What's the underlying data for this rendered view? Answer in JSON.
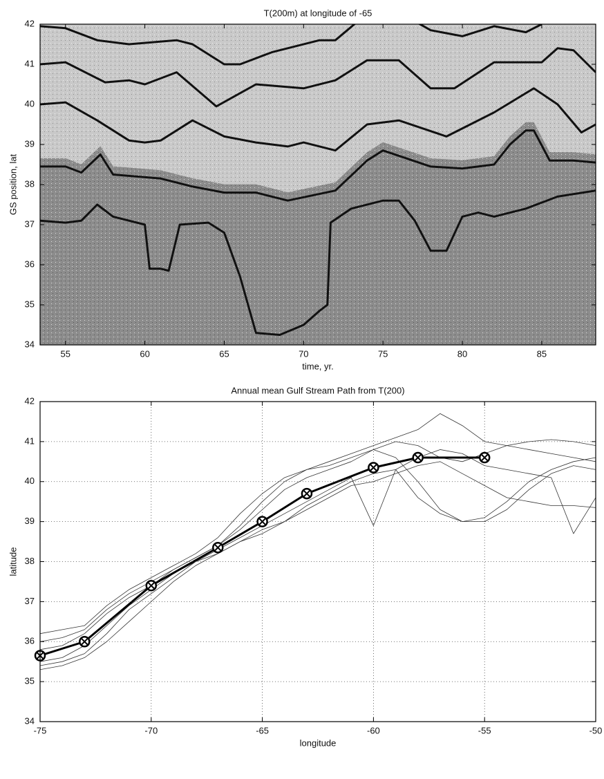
{
  "chart_data": [
    {
      "type": "line",
      "title": "T(200m) at longitude of -65",
      "x_label": "time, yr.",
      "y_label": "GS position, lat",
      "xlim": [
        53.4,
        88.4
      ],
      "ylim": [
        34,
        42
      ],
      "xticks": [
        55,
        60,
        65,
        70,
        75,
        80,
        85
      ],
      "yticks": [
        34,
        35,
        36,
        37,
        38,
        39,
        40,
        41,
        42
      ],
      "grid": false,
      "series": [
        {
          "color": "#111111",
          "x": [
            53.4,
            55,
            57,
            59,
            62,
            63,
            65,
            66,
            68,
            71,
            72,
            73.5,
            76,
            78,
            80,
            82,
            84,
            85
          ],
          "values": [
            41.95,
            41.9,
            41.6,
            41.5,
            41.6,
            41.5,
            41.0,
            41.0,
            41.3,
            41.6,
            41.6,
            42.1,
            42.3,
            41.85,
            41.7,
            41.95,
            41.8,
            42.0
          ]
        },
        {
          "color": "#111111",
          "x": [
            53.4,
            55,
            57.5,
            59,
            60,
            62,
            64.5,
            67,
            70,
            72,
            74,
            76,
            78,
            79.5,
            82,
            85,
            86,
            87,
            88.4
          ],
          "values": [
            41.0,
            41.05,
            40.55,
            40.6,
            40.5,
            40.8,
            39.95,
            40.5,
            40.4,
            40.6,
            41.1,
            41.1,
            40.4,
            40.4,
            41.05,
            41.05,
            41.4,
            41.35,
            40.8
          ]
        },
        {
          "color": "#111111",
          "x": [
            53.4,
            55,
            57,
            59,
            60,
            61,
            63,
            65,
            67,
            69,
            70,
            72,
            74,
            76,
            79,
            82,
            84.5,
            86,
            87.5,
            88.4
          ],
          "values": [
            40.0,
            40.05,
            39.6,
            39.1,
            39.05,
            39.1,
            39.6,
            39.2,
            39.05,
            38.95,
            39.05,
            38.85,
            39.5,
            39.6,
            39.2,
            39.8,
            40.4,
            40.0,
            39.3,
            39.5
          ]
        },
        {
          "color": "#111111",
          "x": [
            53.4,
            55,
            56,
            57.2,
            58,
            61,
            63,
            65,
            67,
            69,
            72,
            74,
            75,
            78,
            80,
            82,
            83,
            84,
            84.5,
            85.5,
            87,
            88.4
          ],
          "values": [
            38.45,
            38.45,
            38.3,
            38.75,
            38.25,
            38.15,
            37.95,
            37.8,
            37.8,
            37.6,
            37.85,
            38.6,
            38.85,
            38.45,
            38.4,
            38.5,
            39.0,
            39.35,
            39.35,
            38.6,
            38.6,
            38.55
          ]
        },
        {
          "color": "#111111",
          "x": [
            53.4,
            55,
            56,
            57,
            58,
            60,
            60.3,
            61,
            61.5,
            62.2,
            64,
            65,
            66,
            67,
            68.5,
            70,
            71,
            71.5,
            71.7,
            73,
            75,
            76,
            77,
            78,
            79,
            80,
            81,
            82,
            84,
            86,
            88.4
          ],
          "values": [
            37.1,
            37.05,
            37.1,
            37.5,
            37.2,
            37.0,
            35.9,
            35.9,
            35.85,
            37.0,
            37.05,
            36.8,
            35.7,
            34.3,
            34.25,
            34.5,
            34.85,
            35.0,
            37.05,
            37.4,
            37.6,
            37.6,
            37.1,
            36.35,
            36.35,
            37.2,
            37.3,
            37.2,
            37.4,
            37.7,
            37.85
          ]
        }
      ]
    },
    {
      "type": "line",
      "title": "Annual mean Gulf Stream Path from T(200)",
      "x_label": "longitude",
      "y_label": "latitude",
      "xlim": [
        -75,
        -50
      ],
      "ylim": [
        34,
        42
      ],
      "xticks": [
        -75,
        -70,
        -65,
        -60,
        -55,
        -50
      ],
      "yticks": [
        34,
        35,
        36,
        37,
        38,
        39,
        40,
        41,
        42
      ],
      "grid": true,
      "x": [
        -75,
        -74,
        -73,
        -72,
        -71,
        -70,
        -69,
        -68,
        -67,
        -66,
        -65,
        -64,
        -63,
        -62,
        -61,
        -60,
        -59,
        -58,
        -57,
        -56,
        -55,
        -54,
        -53,
        -52,
        -51,
        -50
      ],
      "series": [
        {
          "color": "#333333",
          "values": [
            36.2,
            36.3,
            36.4,
            36.9,
            37.3,
            37.6,
            37.9,
            38.2,
            38.6,
            39.2,
            39.7,
            40.1,
            40.3,
            40.5,
            40.7,
            40.9,
            41.1,
            41.3,
            41.7,
            41.4,
            41.0,
            40.9,
            41.0,
            41.05,
            41.0,
            40.9
          ]
        },
        {
          "color": "#333333",
          "values": [
            35.4,
            35.5,
            35.7,
            36.2,
            36.8,
            37.2,
            37.6,
            38.0,
            38.2,
            38.5,
            38.8,
            39.0,
            39.3,
            39.6,
            39.9,
            40.0,
            40.2,
            40.4,
            40.5,
            40.2,
            39.9,
            39.6,
            39.5,
            39.4,
            39.4,
            39.35
          ]
        },
        {
          "color": "#333333",
          "values": [
            35.8,
            35.9,
            36.2,
            36.7,
            37.1,
            37.4,
            37.8,
            38.1,
            38.4,
            38.8,
            39.3,
            39.8,
            40.1,
            40.3,
            40.5,
            40.8,
            40.6,
            40.0,
            39.3,
            39.0,
            39.1,
            39.5,
            40.0,
            40.3,
            40.5,
            40.6
          ]
        },
        {
          "color": "#333333",
          "values": [
            35.5,
            35.6,
            35.9,
            36.4,
            36.9,
            37.3,
            37.7,
            38.0,
            38.3,
            38.6,
            38.9,
            39.2,
            39.5,
            39.8,
            40.1,
            38.9,
            40.3,
            40.6,
            40.8,
            40.7,
            40.4,
            40.3,
            40.2,
            40.1,
            38.7,
            39.6
          ]
        },
        {
          "color": "#333333",
          "values": [
            36.0,
            36.1,
            36.3,
            36.8,
            37.2,
            37.5,
            37.8,
            38.1,
            38.4,
            38.9,
            39.5,
            40.0,
            40.3,
            40.4,
            40.6,
            40.8,
            41.0,
            40.9,
            40.6,
            40.5,
            40.7,
            40.9,
            40.8,
            40.7,
            40.6,
            40.5
          ]
        },
        {
          "color": "#333333",
          "values": [
            35.3,
            35.4,
            35.6,
            36.0,
            36.5,
            37.0,
            37.5,
            37.9,
            38.2,
            38.5,
            38.7,
            39.0,
            39.4,
            39.7,
            40.0,
            40.2,
            40.3,
            39.6,
            39.2,
            39.0,
            39.0,
            39.3,
            39.8,
            40.2,
            40.4,
            40.3
          ]
        },
        {
          "color": "#000000",
          "marker": "circle-x",
          "x": [
            -75,
            -73,
            -70,
            -67,
            -65,
            -63,
            -60,
            -58,
            -55
          ],
          "values": [
            35.65,
            36.0,
            37.4,
            38.35,
            39.0,
            39.7,
            40.35,
            40.6,
            40.6
          ]
        }
      ]
    }
  ]
}
